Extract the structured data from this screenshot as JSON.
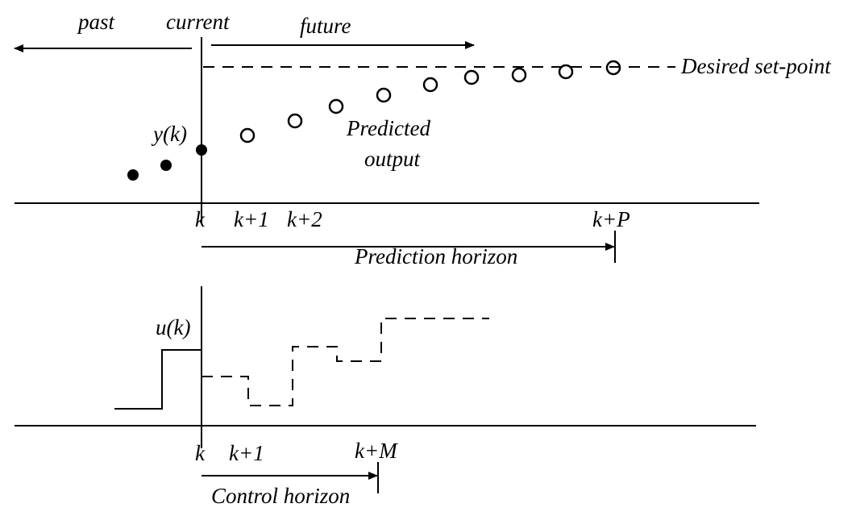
{
  "colors": {
    "ink": "#000000",
    "background": "#ffffff"
  },
  "labels": {
    "past": "past",
    "current": "current",
    "future": "future",
    "desired_setpoint": "Desired set-point",
    "y_k": "y(k)",
    "predicted_line1": "Predicted",
    "predicted_line2": "output",
    "u_k": "u(k)"
  },
  "top_axis": {
    "tick_k": "k",
    "tick_k1": "k+1",
    "tick_k2": "k+2",
    "tick_kP": "k+P",
    "horizon_label": "Prediction horizon"
  },
  "bottom_axis": {
    "tick_k": "k",
    "tick_k1": "k+1",
    "tick_kM": "k+M",
    "horizon_label": "Control horizon"
  }
}
